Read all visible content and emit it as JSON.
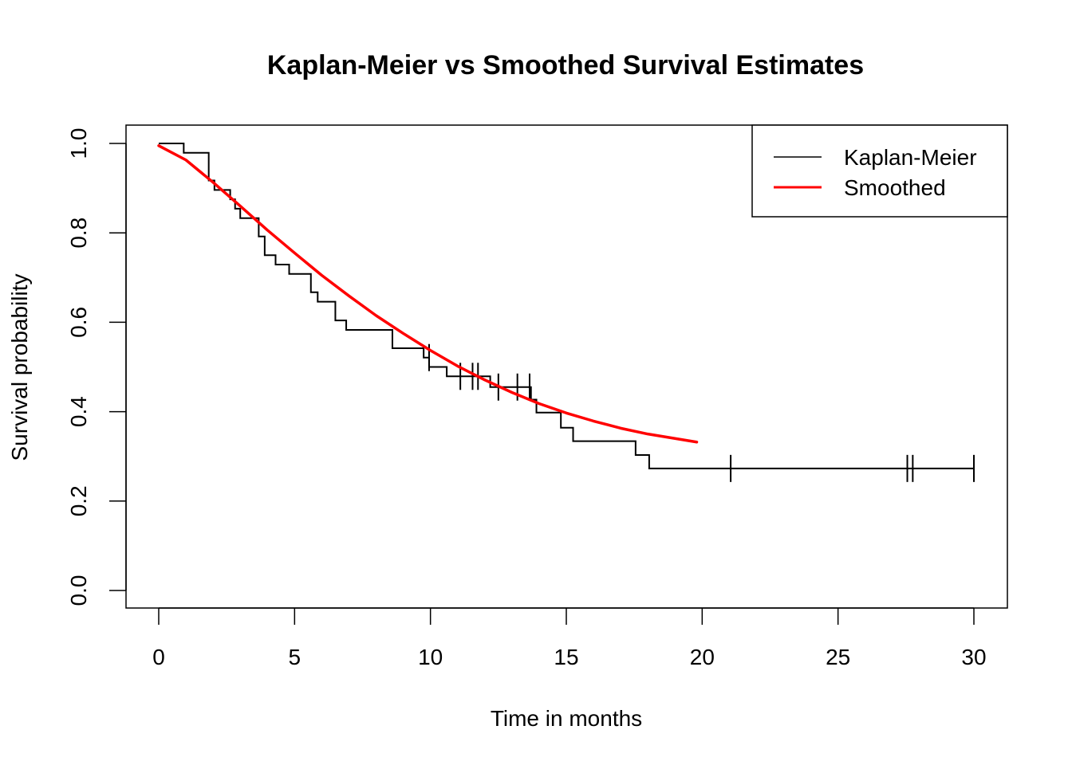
{
  "chart_data": {
    "type": "line",
    "title": "Kaplan-Meier vs Smoothed Survival Estimates",
    "xlabel": "Time in months",
    "ylabel": "Survival probability",
    "xlim": [
      0,
      30
    ],
    "ylim": [
      0,
      1
    ],
    "xticks": [
      0,
      5,
      10,
      15,
      20,
      25,
      30
    ],
    "xtick_labels": [
      "0",
      "5",
      "10",
      "15",
      "20",
      "25",
      "30"
    ],
    "yticks": [
      0,
      0.2,
      0.4,
      0.6,
      0.8,
      1
    ],
    "ytick_labels": [
      "0.0",
      "0.2",
      "0.4",
      "0.6",
      "0.8",
      "1.0"
    ],
    "grid": false,
    "legend_position": "top-right",
    "series": [
      {
        "name": "Kaplan-Meier",
        "style": "step",
        "color": "#000000",
        "points": [
          [
            0.0,
            1.0
          ],
          [
            0.92,
            0.979
          ],
          [
            1.84,
            0.917
          ],
          [
            2.05,
            0.896
          ],
          [
            2.63,
            0.875
          ],
          [
            2.81,
            0.854
          ],
          [
            3.0,
            0.833
          ],
          [
            3.68,
            0.792
          ],
          [
            3.9,
            0.75
          ],
          [
            4.3,
            0.729
          ],
          [
            4.8,
            0.708
          ],
          [
            5.6,
            0.667
          ],
          [
            5.85,
            0.646
          ],
          [
            6.5,
            0.604
          ],
          [
            6.9,
            0.583
          ],
          [
            8.6,
            0.542
          ],
          [
            9.75,
            0.521
          ],
          [
            9.95,
            0.5
          ],
          [
            10.6,
            0.479
          ],
          [
            12.2,
            0.455
          ],
          [
            13.7,
            0.427
          ],
          [
            13.9,
            0.398
          ],
          [
            14.8,
            0.364
          ],
          [
            15.25,
            0.334
          ],
          [
            17.55,
            0.303
          ],
          [
            18.05,
            0.273
          ],
          [
            30.0,
            0.273
          ]
        ],
        "censored": [
          [
            9.95,
            0.521
          ],
          [
            11.1,
            0.479
          ],
          [
            11.55,
            0.479
          ],
          [
            11.75,
            0.479
          ],
          [
            12.5,
            0.455
          ],
          [
            13.2,
            0.455
          ],
          [
            13.65,
            0.455
          ],
          [
            21.05,
            0.273
          ],
          [
            27.55,
            0.273
          ],
          [
            27.75,
            0.273
          ],
          [
            30.0,
            0.273
          ]
        ]
      },
      {
        "name": "Smoothed",
        "style": "line",
        "color": "#ff0000",
        "points": [
          [
            0.0,
            0.995
          ],
          [
            1.0,
            0.963
          ],
          [
            2.0,
            0.913
          ],
          [
            3.0,
            0.86
          ],
          [
            4.0,
            0.806
          ],
          [
            5.0,
            0.755
          ],
          [
            6.0,
            0.705
          ],
          [
            7.0,
            0.659
          ],
          [
            8.0,
            0.615
          ],
          [
            9.0,
            0.575
          ],
          [
            10.0,
            0.537
          ],
          [
            11.0,
            0.502
          ],
          [
            12.0,
            0.471
          ],
          [
            13.0,
            0.443
          ],
          [
            14.0,
            0.418
          ],
          [
            15.0,
            0.397
          ],
          [
            16.0,
            0.379
          ],
          [
            17.0,
            0.363
          ],
          [
            18.0,
            0.35
          ],
          [
            19.0,
            0.34
          ],
          [
            19.8,
            0.332
          ]
        ]
      }
    ]
  }
}
